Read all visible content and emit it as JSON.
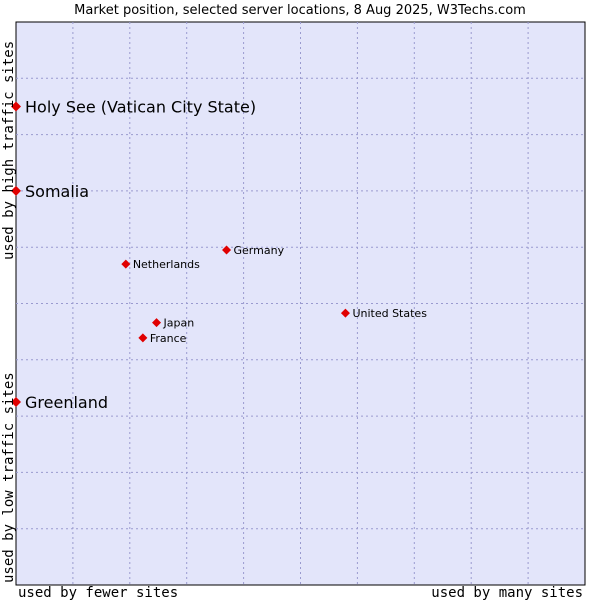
{
  "chart_data": {
    "type": "scatter",
    "title": "Market position, selected server locations, 8 Aug 2025, W3Techs.com",
    "xlabel_left": "used by fewer sites",
    "xlabel_right": "used by many sites",
    "ylabel_bottom": "used by low traffic sites",
    "ylabel_top": "used by high traffic sites",
    "xlim": [
      0,
      100
    ],
    "ylim": [
      0,
      100
    ],
    "grid": true,
    "colors": {
      "plot_bg": "#e3e5fa",
      "point": "#e00000",
      "grid": "#9a9acf"
    },
    "points": [
      {
        "name": "Holy See (Vatican City State)",
        "x": 0,
        "y": 85,
        "size": "large"
      },
      {
        "name": "Somalia",
        "x": 0,
        "y": 70,
        "size": "large"
      },
      {
        "name": "Germany",
        "x": 37,
        "y": 59.5,
        "size": "small"
      },
      {
        "name": "Netherlands",
        "x": 19.3,
        "y": 57,
        "size": "small"
      },
      {
        "name": "United States",
        "x": 57.9,
        "y": 48.3,
        "size": "small"
      },
      {
        "name": "Japan",
        "x": 24.7,
        "y": 46.6,
        "size": "small"
      },
      {
        "name": "France",
        "x": 22.3,
        "y": 43.9,
        "size": "small"
      },
      {
        "name": "Greenland",
        "x": 0,
        "y": 32.5,
        "size": "large"
      }
    ]
  }
}
